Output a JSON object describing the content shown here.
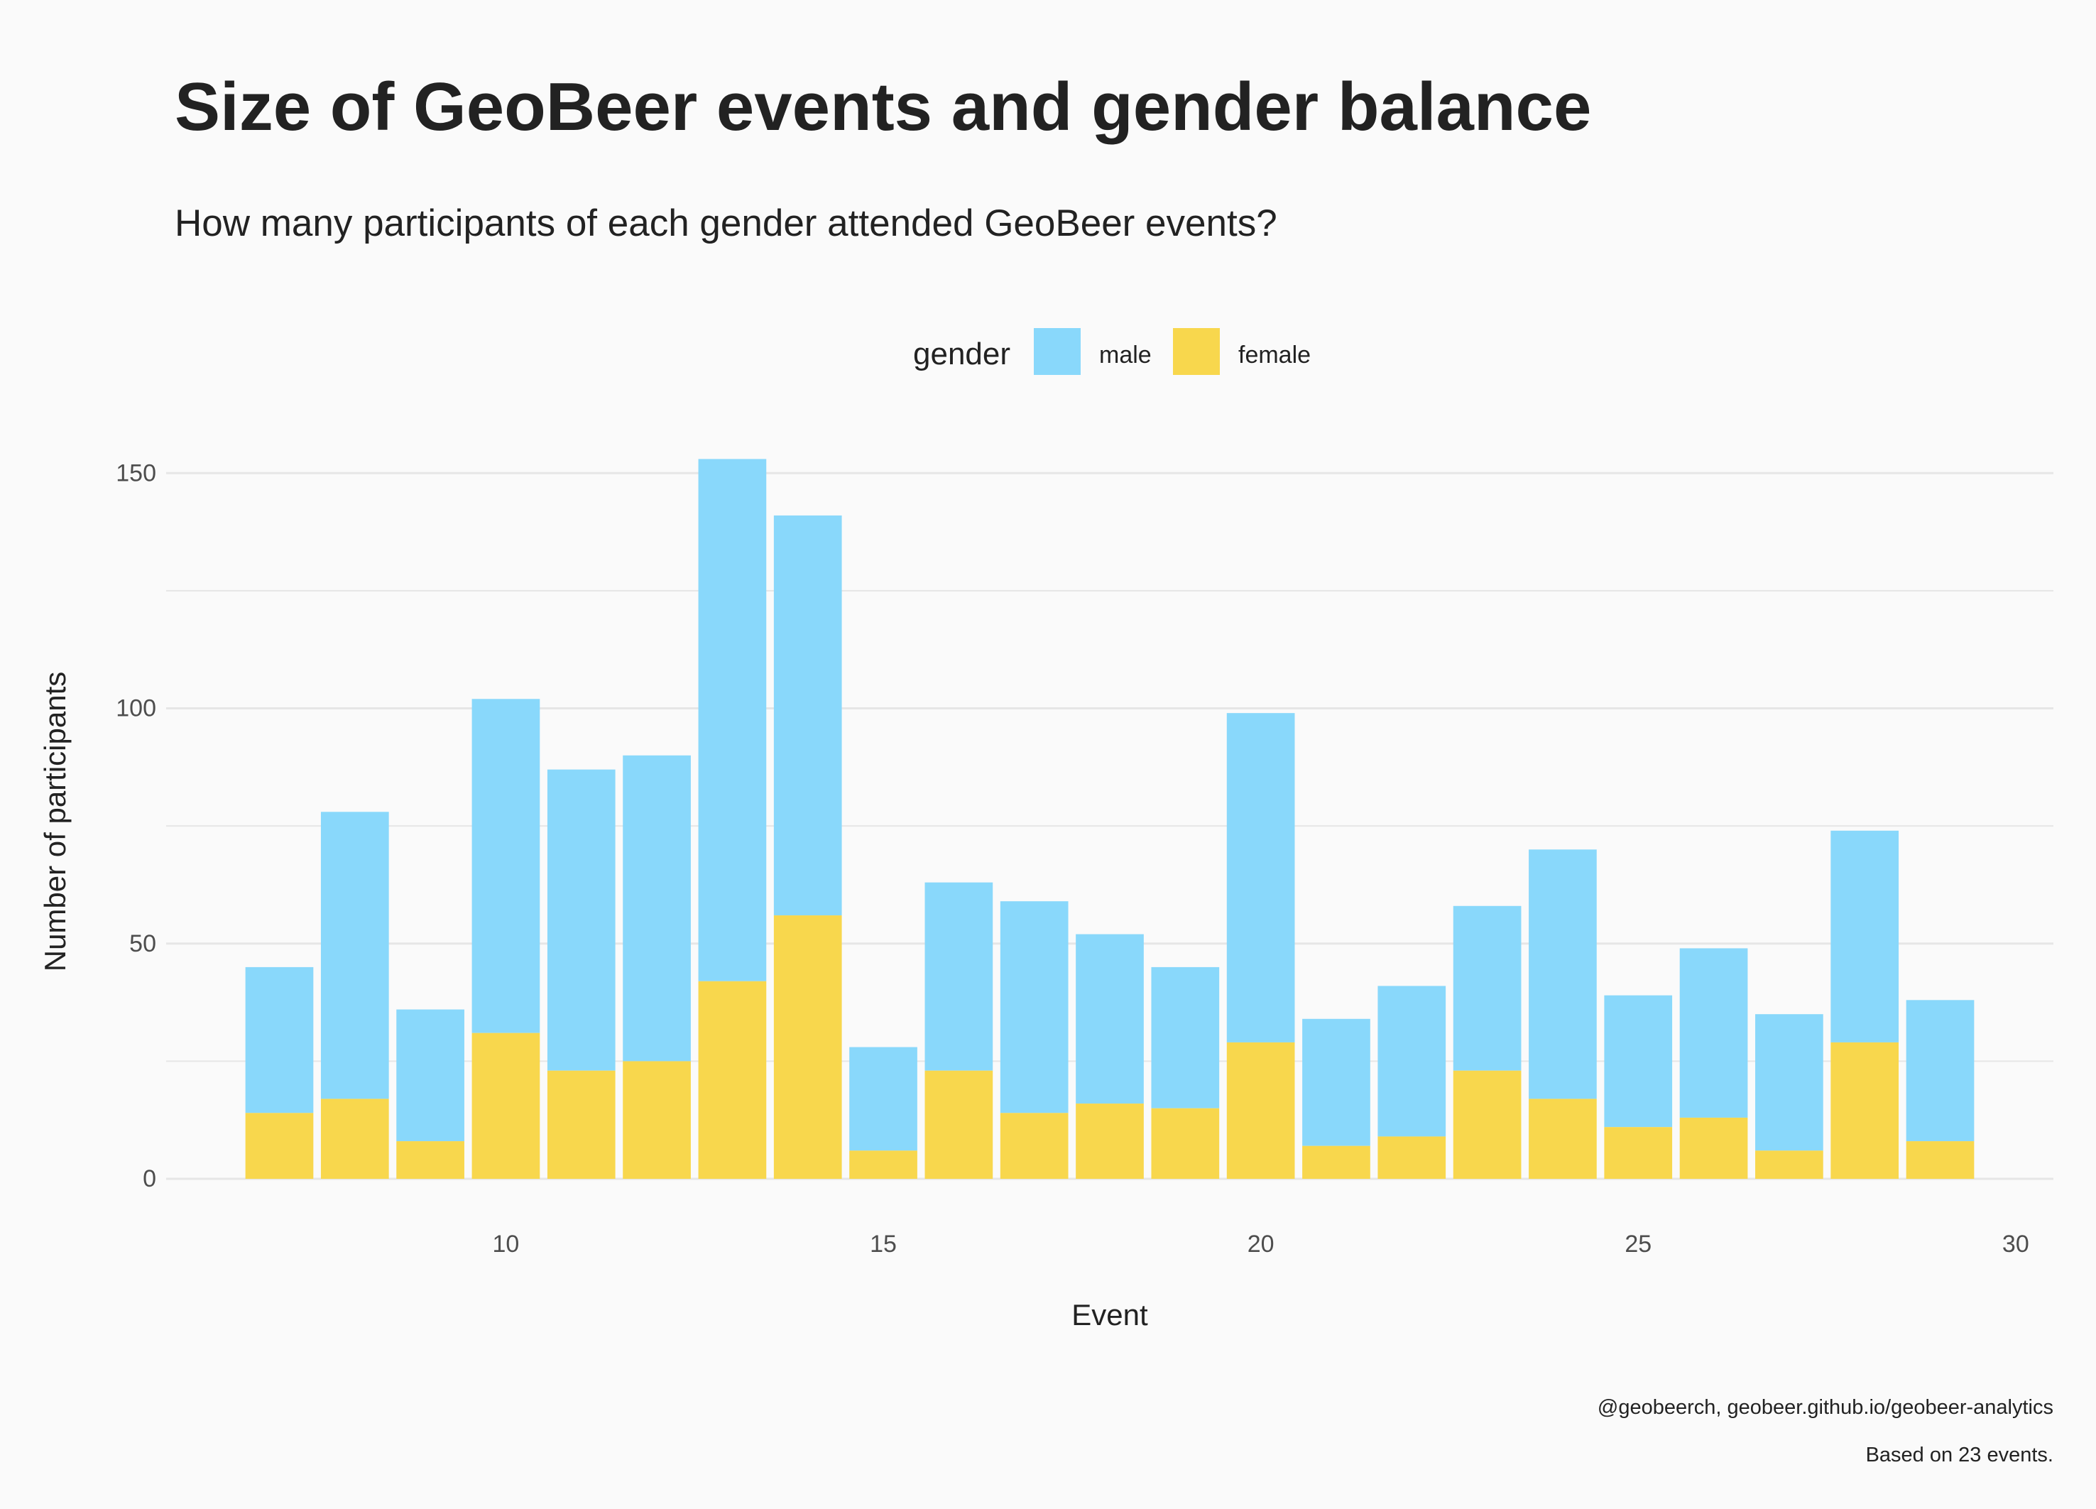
{
  "title": "Size of GeoBeer events and gender balance",
  "subtitle": "How many participants of each gender attended GeoBeer events?",
  "captions": [
    "@geobeerch, geobeer.github.io/geobeer-analytics",
    "Based on 23 events."
  ],
  "colors": {
    "background": "#fafafa",
    "grid": "#e6e6e6",
    "male": "#89d8fb",
    "female": "#f8d74d",
    "text": "#222222",
    "tick": "#4d4d4d"
  },
  "chart_data": {
    "type": "bar",
    "stacked": true,
    "title": "Size of GeoBeer events and gender balance",
    "subtitle": "How many participants of each gender attended GeoBeer events?",
    "xlabel": "Event",
    "ylabel": "Number of participants",
    "legend": {
      "title": "gender",
      "position": "top"
    },
    "x": [
      7,
      8,
      9,
      10,
      11,
      12,
      13,
      14,
      15,
      16,
      17,
      18,
      19,
      20,
      21,
      22,
      23,
      24,
      25,
      26,
      27,
      28,
      29
    ],
    "series": [
      {
        "name": "male",
        "color": "#89d8fb",
        "values": [
          31,
          61,
          28,
          71,
          64,
          65,
          111,
          85,
          22,
          40,
          45,
          36,
          30,
          70,
          27,
          32,
          35,
          53,
          28,
          36,
          29,
          45,
          30
        ]
      },
      {
        "name": "female",
        "color": "#f8d74d",
        "values": [
          14,
          17,
          8,
          31,
          23,
          25,
          42,
          56,
          6,
          23,
          14,
          16,
          15,
          29,
          7,
          9,
          23,
          17,
          11,
          13,
          6,
          29,
          8
        ]
      }
    ],
    "xlim": [
      5.5,
      30.5
    ],
    "ylim": [
      -1.5,
      160
    ],
    "xticks": [
      10,
      15,
      20,
      25,
      30
    ],
    "yticks": [
      0,
      50,
      100,
      150
    ],
    "grid": true
  }
}
